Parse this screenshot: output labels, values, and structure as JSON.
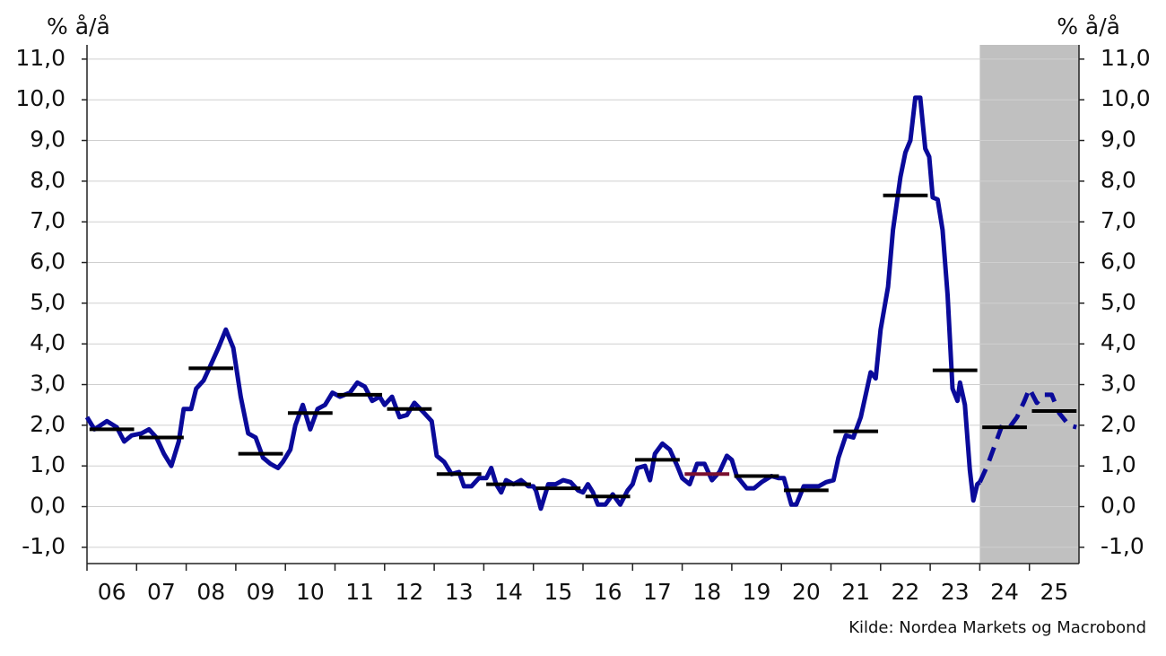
{
  "chart_data": {
    "type": "line",
    "ylabel": "% å/å",
    "y2label": "% å/å",
    "source": "Kilde: Nordea Markets og Macrobond",
    "xlim": [
      2006,
      2026
    ],
    "xticks": [
      {
        "value": 2006.5,
        "label": "06"
      },
      {
        "value": 2007.5,
        "label": "07"
      },
      {
        "value": 2008.5,
        "label": "08"
      },
      {
        "value": 2009.5,
        "label": "09"
      },
      {
        "value": 2010.5,
        "label": "10"
      },
      {
        "value": 2011.5,
        "label": "11"
      },
      {
        "value": 2012.5,
        "label": "12"
      },
      {
        "value": 2013.5,
        "label": "13"
      },
      {
        "value": 2014.5,
        "label": "14"
      },
      {
        "value": 2015.5,
        "label": "15"
      },
      {
        "value": 2016.5,
        "label": "16"
      },
      {
        "value": 2017.5,
        "label": "17"
      },
      {
        "value": 2018.5,
        "label": "18"
      },
      {
        "value": 2019.5,
        "label": "19"
      },
      {
        "value": 2020.5,
        "label": "20"
      },
      {
        "value": 2021.5,
        "label": "21"
      },
      {
        "value": 2022.5,
        "label": "22"
      },
      {
        "value": 2023.5,
        "label": "23"
      },
      {
        "value": 2024.5,
        "label": "24"
      },
      {
        "value": 2025.5,
        "label": "25"
      }
    ],
    "ylim": [
      -1.4,
      11.35
    ],
    "yticks": [
      {
        "value": -1,
        "label": "-1,0"
      },
      {
        "value": 0,
        "label": "0,0"
      },
      {
        "value": 1,
        "label": "1,0"
      },
      {
        "value": 2,
        "label": "2,0"
      },
      {
        "value": 3,
        "label": "3,0"
      },
      {
        "value": 4,
        "label": "4,0"
      },
      {
        "value": 5,
        "label": "5,0"
      },
      {
        "value": 6,
        "label": "6,0"
      },
      {
        "value": 7,
        "label": "7,0"
      },
      {
        "value": 8,
        "label": "8,0"
      },
      {
        "value": 9,
        "label": "9,0"
      },
      {
        "value": 10,
        "label": "10,0"
      },
      {
        "value": 11,
        "label": "11,0"
      }
    ],
    "y2lim": [
      -1.4,
      11.35
    ],
    "y2ticks": [
      {
        "value": -1,
        "label": "-1,0"
      },
      {
        "value": 0,
        "label": "0,0"
      },
      {
        "value": 1,
        "label": "1,0"
      },
      {
        "value": 2,
        "label": "2,0"
      },
      {
        "value": 3,
        "label": "3,0"
      },
      {
        "value": 4,
        "label": "4,0"
      },
      {
        "value": 5,
        "label": "5,0"
      },
      {
        "value": 6,
        "label": "6,0"
      },
      {
        "value": 7,
        "label": "7,0"
      },
      {
        "value": 8,
        "label": "8,0"
      },
      {
        "value": 9,
        "label": "9,0"
      },
      {
        "value": 10,
        "label": "10,0"
      },
      {
        "value": 11,
        "label": "11,0"
      }
    ],
    "grid": true,
    "shade": [
      2024,
      2026
    ],
    "shade_color": "#c0c0c0",
    "series": [
      {
        "color": "#0a0a9a",
        "dash": false,
        "x": [
          2006.0,
          2006.15,
          2006.4,
          2006.6,
          2006.75,
          2006.9,
          2007.1,
          2007.25,
          2007.4,
          2007.55,
          2007.7,
          2007.85,
          2007.95,
          2008.1,
          2008.2,
          2008.35,
          2008.5,
          2008.65,
          2008.8,
          2008.95,
          2009.1,
          2009.25,
          2009.4,
          2009.55,
          2009.7,
          2009.85,
          2009.95,
          2010.1,
          2010.2,
          2010.35,
          2010.5,
          2010.65,
          2010.8,
          2010.95,
          2011.1,
          2011.3,
          2011.45,
          2011.6,
          2011.75,
          2011.9,
          2012.0,
          2012.15,
          2012.3,
          2012.45,
          2012.6,
          2012.8,
          2012.95,
          2013.05,
          2013.2,
          2013.35,
          2013.5,
          2013.6,
          2013.75,
          2013.9,
          2014.05,
          2014.15,
          2014.25,
          2014.35,
          2014.45,
          2014.6,
          2014.75,
          2014.9,
          2015.0,
          2015.05,
          2015.15,
          2015.3,
          2015.45,
          2015.6,
          2015.75,
          2015.9,
          2016.0,
          2016.1,
          2016.2,
          2016.3,
          2016.45,
          2016.6,
          2016.75,
          2016.9,
          2017.0,
          2017.1,
          2017.25,
          2017.35,
          2017.45,
          2017.6,
          2017.75,
          2017.9,
          2018.0,
          2018.15,
          2018.3,
          2018.45,
          2018.6,
          2018.75,
          2018.9,
          2019.0,
          2019.1,
          2019.3,
          2019.45,
          2019.6,
          2019.8,
          2019.95,
          2020.05,
          2020.2,
          2020.3,
          2020.45,
          2020.6,
          2020.75,
          2020.9,
          2021.05,
          2021.15,
          2021.3,
          2021.45,
          2021.6,
          2021.8,
          2021.9,
          2022.0,
          2022.15,
          2022.25,
          2022.4,
          2022.5,
          2022.6,
          2022.7,
          2022.8,
          2022.9,
          2022.98,
          2023.05,
          2023.15,
          2023.25,
          2023.35,
          2023.45,
          2023.55,
          2023.6,
          2023.7,
          2023.8,
          2023.87,
          2023.95,
          2024.0
        ],
        "values": [
          2.2,
          1.9,
          2.1,
          1.95,
          1.6,
          1.75,
          1.8,
          1.9,
          1.7,
          1.3,
          1.0,
          1.6,
          2.4,
          2.4,
          2.9,
          3.1,
          3.5,
          3.9,
          4.35,
          3.9,
          2.7,
          1.8,
          1.7,
          1.2,
          1.05,
          0.95,
          1.1,
          1.4,
          2.0,
          2.5,
          1.9,
          2.4,
          2.5,
          2.8,
          2.7,
          2.8,
          3.05,
          2.95,
          2.6,
          2.7,
          2.5,
          2.7,
          2.2,
          2.25,
          2.55,
          2.3,
          2.1,
          1.25,
          1.1,
          0.8,
          0.85,
          0.5,
          0.5,
          0.7,
          0.7,
          0.95,
          0.55,
          0.35,
          0.65,
          0.55,
          0.65,
          0.5,
          0.5,
          0.4,
          -0.05,
          0.55,
          0.55,
          0.65,
          0.6,
          0.4,
          0.35,
          0.55,
          0.35,
          0.05,
          0.05,
          0.3,
          0.05,
          0.4,
          0.55,
          0.95,
          1.0,
          0.65,
          1.3,
          1.55,
          1.4,
          1.0,
          0.7,
          0.55,
          1.05,
          1.05,
          0.65,
          0.85,
          1.25,
          1.15,
          0.75,
          0.45,
          0.45,
          0.6,
          0.75,
          0.7,
          0.7,
          0.05,
          0.05,
          0.5,
          0.5,
          0.5,
          0.6,
          0.65,
          1.2,
          1.75,
          1.7,
          2.2,
          3.3,
          3.15,
          4.35,
          5.4,
          6.8,
          8.1,
          8.7,
          9.0,
          10.05,
          10.05,
          8.8,
          8.6,
          7.6,
          7.55,
          6.8,
          5.2,
          2.9,
          2.6,
          3.05,
          2.5,
          0.9,
          0.15,
          0.55,
          0.6
        ]
      },
      {
        "color": "#0a0a9a",
        "dash": true,
        "x": [
          2024.0,
          2024.15,
          2024.3,
          2024.45,
          2024.6,
          2024.75,
          2024.9,
          2025.0,
          2025.15,
          2025.3,
          2025.45,
          2025.6,
          2025.8,
          2025.95
        ],
        "values": [
          0.6,
          1.0,
          1.5,
          2.0,
          1.95,
          2.2,
          2.6,
          2.9,
          2.55,
          2.75,
          2.75,
          2.3,
          2.0,
          1.95
        ]
      }
    ],
    "annual_averages": {
      "values": [
        1.9,
        1.7,
        3.4,
        1.3,
        2.3,
        2.75,
        2.4,
        0.8,
        0.55,
        0.45,
        0.25,
        1.15,
        0.8,
        0.75,
        0.4,
        1.85,
        7.65,
        3.35,
        1.95,
        2.35
      ],
      "colors": [
        "#000000",
        "#000000",
        "#000000",
        "#000000",
        "#000000",
        "#000000",
        "#000000",
        "#000000",
        "#000000",
        "#000000",
        "#000000",
        "#000000",
        "#7a1030",
        "#000000",
        "#000000",
        "#000000",
        "#000000",
        "#000000",
        "#000000",
        "#000000"
      ]
    }
  }
}
